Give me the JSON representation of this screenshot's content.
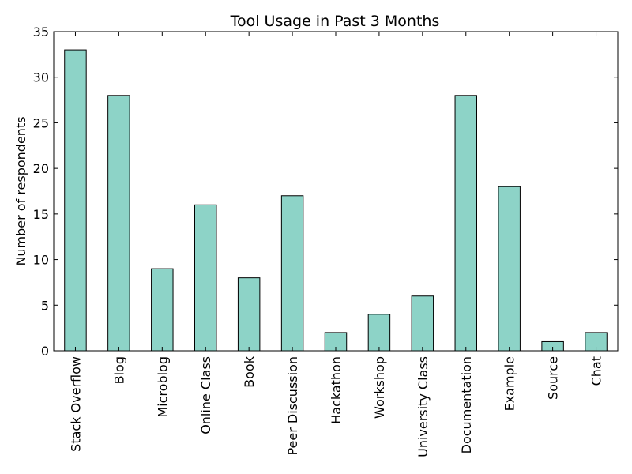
{
  "chart_data": {
    "type": "bar",
    "title": "Tool Usage in Past 3 Months",
    "xlabel": "",
    "ylabel": "Number of respondents",
    "categories": [
      "Stack Overflow",
      "Blog",
      "Microblog",
      "Online Class",
      "Book",
      "Peer Discussion",
      "Hackathon",
      "Workshop",
      "University Class",
      "Documentation",
      "Example",
      "Source",
      "Chat"
    ],
    "values": [
      33,
      28,
      9,
      16,
      8,
      17,
      2,
      4,
      6,
      28,
      18,
      1,
      2
    ],
    "ylim": [
      0,
      35
    ],
    "yticks": [
      0,
      5,
      10,
      15,
      20,
      25,
      30,
      35
    ],
    "grid": false,
    "bar_color": "#8dd3c7",
    "edge_color": "#000000"
  }
}
